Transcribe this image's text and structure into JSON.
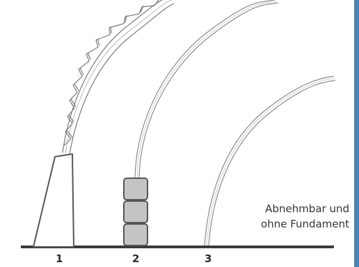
{
  "labels": [
    "1",
    "2",
    "3"
  ],
  "note": {
    "line1": "Abnehmbar und",
    "line2": "ohne Fundament"
  },
  "colors": {
    "ground": "#3a3a3a",
    "outline": "#555555",
    "block_fill": "#c4c4c4",
    "tube": "#9a9a9a",
    "accent_border": "#4a83b8"
  }
}
